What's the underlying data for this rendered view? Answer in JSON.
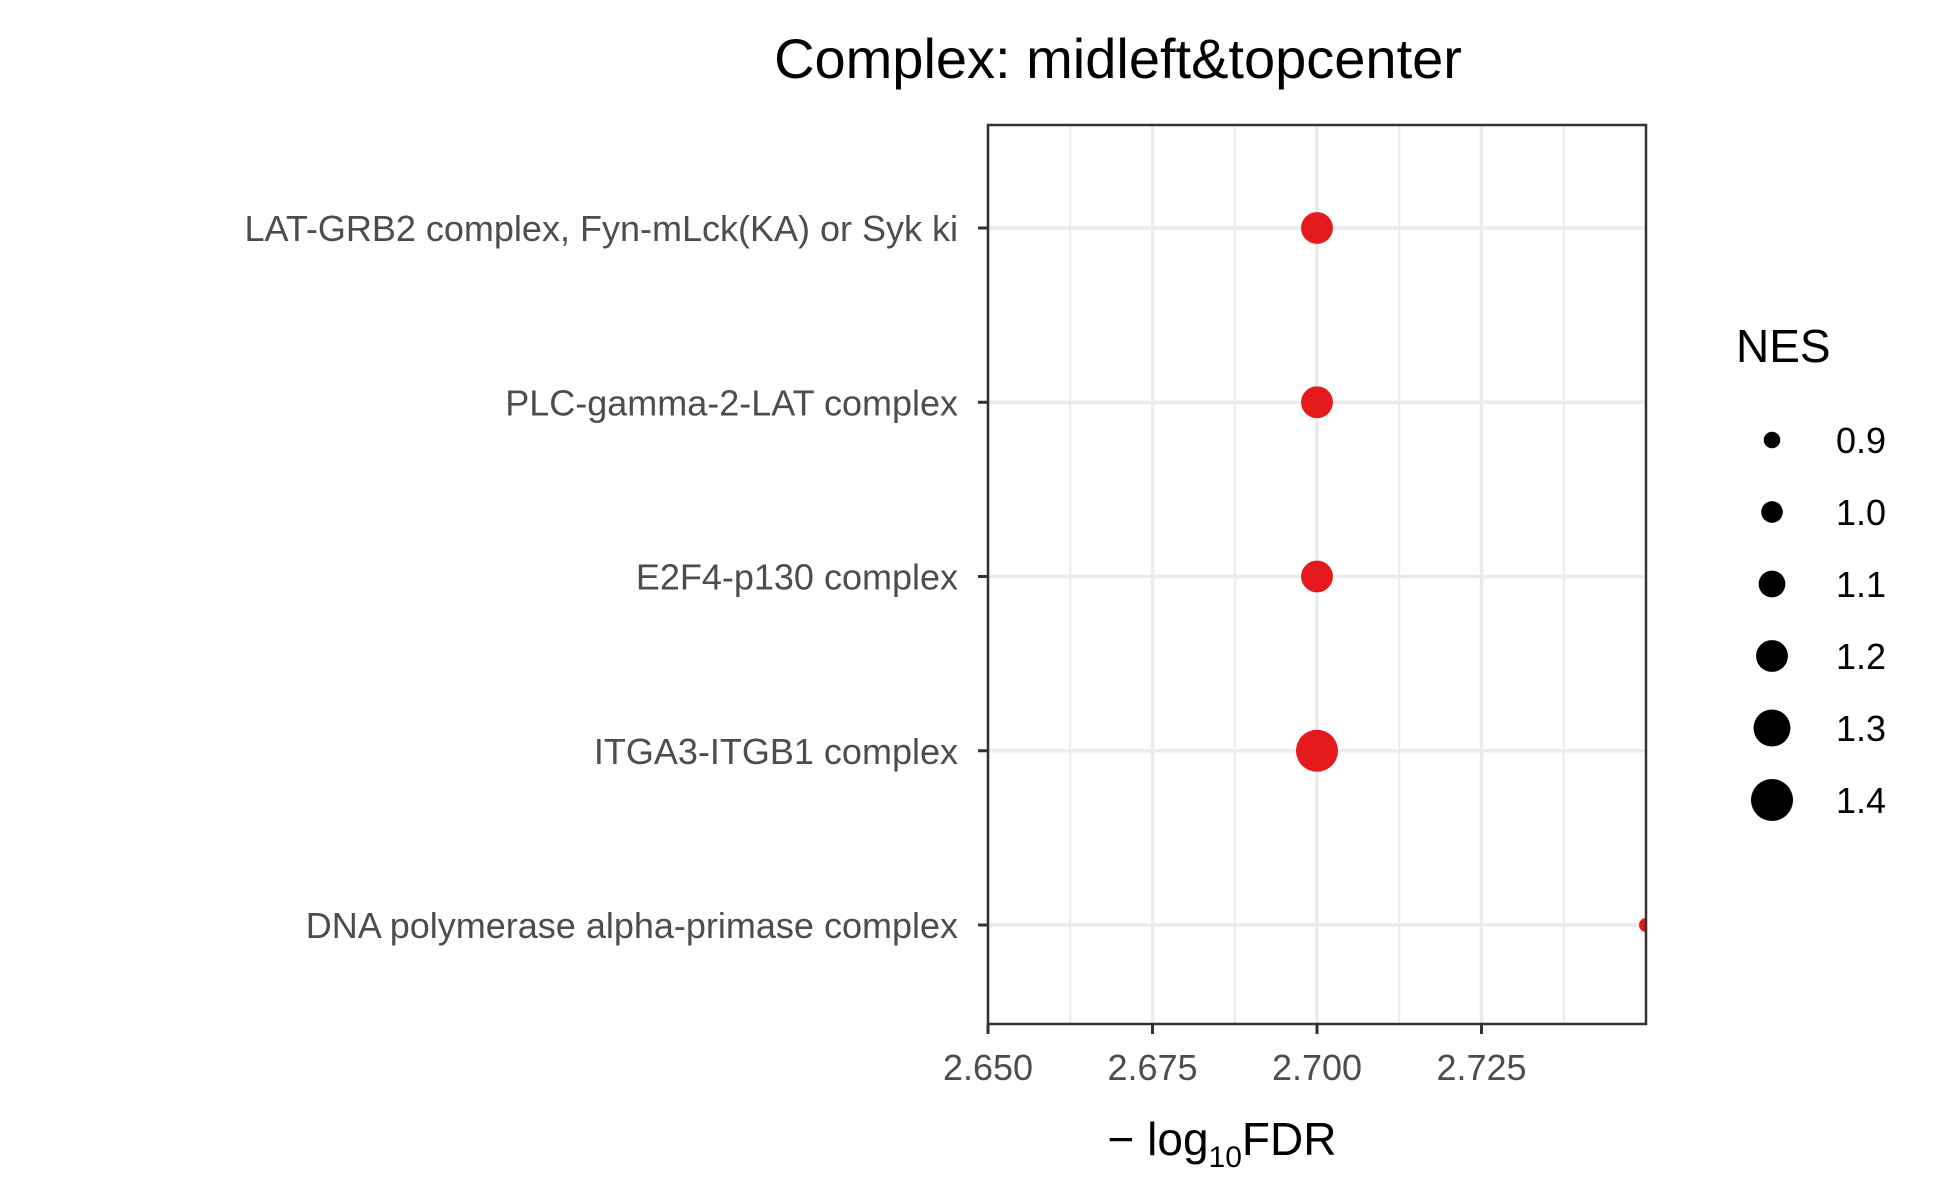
{
  "chart_data": {
    "type": "scatter",
    "title": "Complex: midleft&topcenter",
    "xlabel": {
      "prefix": "− log",
      "subscript": "10",
      "suffix": "FDR"
    },
    "xlim": [
      2.65,
      2.75
    ],
    "xticks": [
      2.65,
      2.675,
      2.7,
      2.725
    ],
    "xtick_labels": [
      "2.650",
      "2.675",
      "2.700",
      "2.725"
    ],
    "categories": [
      "LAT-GRB2 complex, Fyn-mLck(KA) or Syk ki",
      "PLC-gamma-2-LAT complex",
      "E2F4-p130 complex",
      "ITGA3-ITGB1 complex",
      "DNA polymerase alpha-primase complex"
    ],
    "points": [
      {
        "category": "LAT-GRB2 complex, Fyn-mLck(KA) or Syk ki",
        "x": 2.7,
        "nes": 1.2
      },
      {
        "category": "PLC-gamma-2-LAT complex",
        "x": 2.7,
        "nes": 1.2
      },
      {
        "category": "E2F4-p130 complex",
        "x": 2.7,
        "nes": 1.2
      },
      {
        "category": "ITGA3-ITGB1 complex",
        "x": 2.7,
        "nes": 1.4
      },
      {
        "category": "DNA polymerase alpha-primase complex",
        "x": 2.75,
        "nes": 0.85
      }
    ],
    "point_color": "#e41a1c",
    "size_legend": {
      "title": "NES",
      "values": [
        0.9,
        1.0,
        1.1,
        1.2,
        1.3,
        1.4
      ],
      "labels": [
        "0.9",
        "1.0",
        "1.1",
        "1.2",
        "1.3",
        "1.4"
      ]
    },
    "grid": true,
    "legend_position": "right"
  }
}
